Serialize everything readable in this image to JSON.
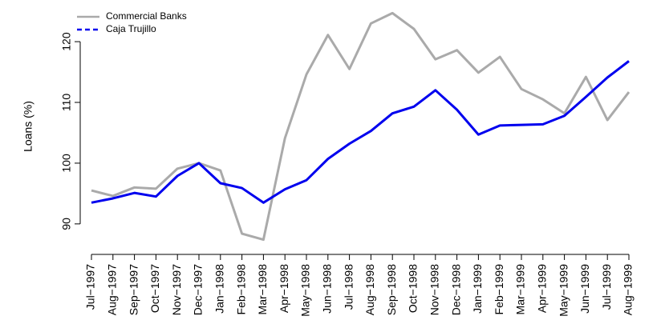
{
  "chart_data": {
    "type": "line",
    "y_label": "Loans (%)",
    "categories": [
      "Jul−1997",
      "Aug−1997",
      "Sep−1997",
      "Oct−1997",
      "Nov−1997",
      "Dec−1997",
      "Jan−1998",
      "Feb−1998",
      "Mar−1998",
      "Apr−1998",
      "May−1998",
      "Jun−1998",
      "Jul−1998",
      "Aug−1998",
      "Sep−1998",
      "Oct−1998",
      "Nov−1998",
      "Dec−1998",
      "Jan−1999",
      "Feb−1999",
      "Mar−1999",
      "Apr−1999",
      "May−1999",
      "Jun−1999",
      "Jul−1999",
      "Aug−1999"
    ],
    "series": [
      {
        "name": "Commercial Banks",
        "color": "#aaaaaa",
        "values": [
          95.5,
          94.6,
          96.0,
          95.8,
          99.1,
          100,
          98.8,
          88.4,
          87.4,
          104.1,
          114.6,
          121.1,
          115.5,
          123.0,
          124.7,
          122.1,
          117.1,
          118.6,
          114.9,
          117.5,
          112.2,
          110.5,
          108.2,
          114.2,
          107.1,
          111.7
        ]
      },
      {
        "name": "Caja Trujillo",
        "color": "#0000ee",
        "values": [
          93.5,
          94.2,
          95.1,
          94.5,
          97.9,
          100,
          96.7,
          95.9,
          93.5,
          95.7,
          97.2,
          100.7,
          103.2,
          105.3,
          108.2,
          109.3,
          112.0,
          108.8,
          104.7,
          106.2,
          106.3,
          106.4,
          107.8,
          110.9,
          114.1,
          116.8
        ]
      }
    ],
    "ylim": [
      85.9,
      126.2
    ],
    "yticks": [
      90,
      100,
      110,
      120
    ],
    "legend": "top-left",
    "grid": false
  }
}
